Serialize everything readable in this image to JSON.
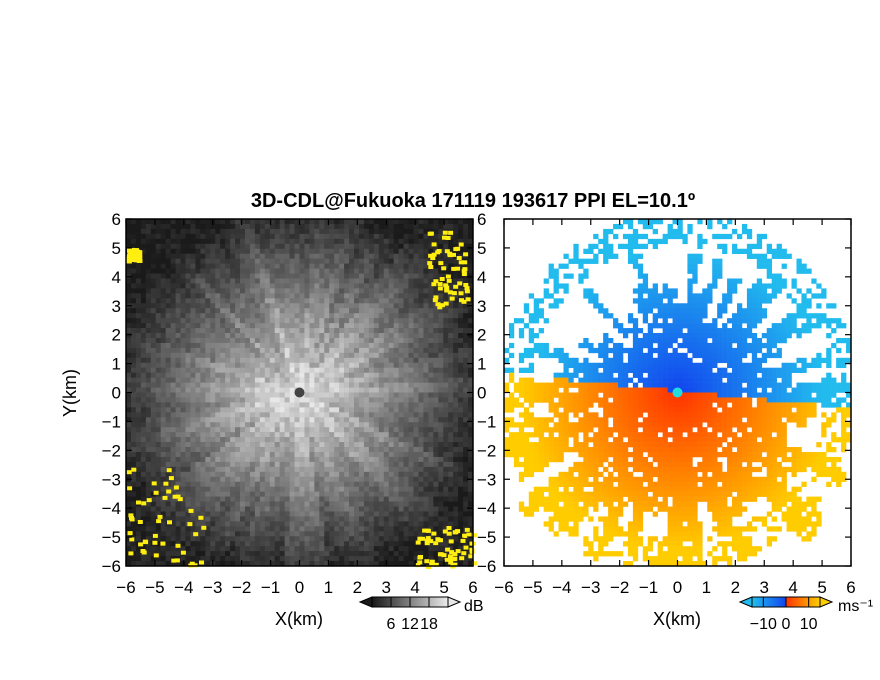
{
  "chart_data": [
    {
      "type": "heatmap",
      "title": "3D-CDL@Fukuoka 171119 193617 PPI EL=10.1º",
      "panel": "left",
      "xlabel": "X(km)",
      "ylabel": "Y(km)",
      "xlim": [
        -6,
        6
      ],
      "ylim": [
        -6,
        6
      ],
      "xticks": [
        "−6",
        "−5",
        "−4",
        "−3",
        "−2",
        "−1",
        "0",
        "1",
        "2",
        "3",
        "4",
        "5",
        "6"
      ],
      "yticks": [
        "−6",
        "−5",
        "−4",
        "−3",
        "−2",
        "−1",
        "0",
        "1",
        "2",
        "3",
        "4",
        "5",
        "6"
      ],
      "colorbar": {
        "label": "dB",
        "ticks": [
          "6",
          "12",
          "18"
        ],
        "values": [
          6,
          12,
          18
        ],
        "range": [
          0,
          24
        ]
      },
      "colors": {
        "low": "#1a1a1a",
        "high": "#e8e8e8",
        "clutter": "#ffee11"
      },
      "clutter_regions": [
        {
          "x": [
            4.4,
            5.8
          ],
          "y": [
            3.0,
            5.6
          ]
        },
        {
          "x": [
            -6.0,
            -3.2
          ],
          "y": [
            -6.0,
            -2.5
          ]
        },
        {
          "x": [
            4.0,
            6.0
          ],
          "y": [
            -6.0,
            -4.6
          ]
        },
        {
          "x": [
            -6.0,
            -5.6
          ],
          "y": [
            4.6,
            5.0
          ]
        }
      ]
    },
    {
      "type": "heatmap",
      "panel": "right",
      "xlabel": "X(km)",
      "xlim": [
        -6,
        6
      ],
      "ylim": [
        -6,
        6
      ],
      "xticks": [
        "−6",
        "−5",
        "−4",
        "−3",
        "−2",
        "−1",
        "0",
        "1",
        "2",
        "3",
        "4",
        "5",
        "6"
      ],
      "yticks": [
        "−6",
        "−5",
        "−4",
        "−3",
        "−2",
        "−1",
        "0",
        "1",
        "2",
        "3",
        "4",
        "5",
        "6"
      ],
      "colorbar": {
        "label": "ms⁻¹",
        "ticks": [
          "−10",
          "0",
          "10"
        ],
        "values": [
          -10,
          0,
          10
        ],
        "range": [
          -15,
          15
        ]
      },
      "colors": {
        "negative": "#1144ee",
        "negative_far": "#22bbee",
        "positive": "#ff3300",
        "positive_far": "#ffcc00"
      },
      "field": "radial velocity: negative to the north, positive to the south"
    }
  ]
}
